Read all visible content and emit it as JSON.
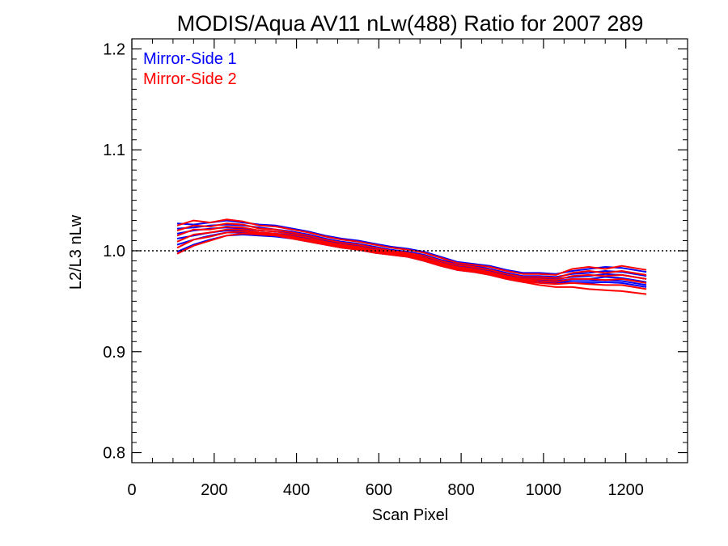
{
  "chart_data": {
    "type": "line",
    "title": "MODIS/Aqua AV11 nLw(488) Ratio for 2007 289",
    "xlabel": "Scan Pixel",
    "ylabel": "L2/L3 nLw",
    "xlim": [
      0,
      1350
    ],
    "ylim": [
      0.79,
      1.21
    ],
    "x_ticks": [
      0,
      200,
      400,
      600,
      800,
      1000,
      1200
    ],
    "x_tick_labels": [
      "0",
      "200",
      "400",
      "600",
      "800",
      "1000",
      "1200"
    ],
    "y_ticks": [
      0.8,
      0.9,
      1.0,
      1.1,
      1.2
    ],
    "y_tick_labels": [
      "0.8",
      "0.9",
      "1.0",
      "1.1",
      "1.2"
    ],
    "reference_line": {
      "y": 1.0,
      "style": "dotted"
    },
    "legend_position": "top-left",
    "legend": [
      {
        "label": "Mirror-Side 1",
        "color": "#0000ff"
      },
      {
        "label": "Mirror-Side 2",
        "color": "#ff0000"
      }
    ],
    "x": [
      110,
      150,
      190,
      230,
      270,
      310,
      350,
      390,
      430,
      470,
      510,
      550,
      590,
      630,
      670,
      710,
      750,
      790,
      830,
      870,
      910,
      950,
      990,
      1030,
      1070,
      1110,
      1150,
      1190,
      1250
    ],
    "series": [
      {
        "group": "Mirror-Side 1",
        "color": "#0000ff",
        "values": [
          1.027,
          1.026,
          1.028,
          1.03,
          1.028,
          1.026,
          1.025,
          1.022,
          1.019,
          1.015,
          1.012,
          1.01,
          1.007,
          1.004,
          1.002,
          0.999,
          0.994,
          0.989,
          0.987,
          0.985,
          0.981,
          0.978,
          0.978,
          0.977,
          0.98,
          0.982,
          0.984,
          0.983,
          0.979
        ]
      },
      {
        "group": "Mirror-Side 1",
        "color": "#0000ff",
        "values": [
          1.022,
          1.023,
          1.025,
          1.026,
          1.025,
          1.023,
          1.021,
          1.019,
          1.016,
          1.012,
          1.009,
          1.007,
          1.004,
          1.001,
          0.999,
          0.996,
          0.991,
          0.987,
          0.985,
          0.982,
          0.978,
          0.975,
          0.975,
          0.974,
          0.977,
          0.978,
          0.98,
          0.979,
          0.975
        ]
      },
      {
        "group": "Mirror-Side 1",
        "color": "#0000ff",
        "values": [
          1.017,
          1.02,
          1.022,
          1.023,
          1.022,
          1.02,
          1.019,
          1.017,
          1.014,
          1.01,
          1.007,
          1.005,
          1.002,
          1.0,
          0.998,
          0.994,
          0.989,
          0.985,
          0.983,
          0.98,
          0.976,
          0.973,
          0.973,
          0.972,
          0.974,
          0.975,
          0.977,
          0.976,
          0.972
        ]
      },
      {
        "group": "Mirror-Side 1",
        "color": "#0000ff",
        "values": [
          1.012,
          1.015,
          1.018,
          1.02,
          1.02,
          1.018,
          1.017,
          1.015,
          1.012,
          1.008,
          1.005,
          1.003,
          1.0,
          0.998,
          0.996,
          0.992,
          0.987,
          0.983,
          0.981,
          0.978,
          0.974,
          0.971,
          0.971,
          0.97,
          0.972,
          0.972,
          0.974,
          0.973,
          0.969
        ]
      },
      {
        "group": "Mirror-Side 1",
        "color": "#0000ff",
        "values": [
          1.006,
          1.011,
          1.015,
          1.018,
          1.018,
          1.016,
          1.015,
          1.013,
          1.01,
          1.007,
          1.004,
          1.002,
          0.999,
          0.997,
          0.995,
          0.991,
          0.986,
          0.982,
          0.98,
          0.977,
          0.973,
          0.97,
          0.97,
          0.969,
          0.97,
          0.97,
          0.971,
          0.97,
          0.966
        ]
      },
      {
        "group": "Mirror-Side 1",
        "color": "#0000ff",
        "values": [
          0.999,
          1.006,
          1.011,
          1.015,
          1.016,
          1.015,
          1.014,
          1.012,
          1.009,
          1.006,
          1.003,
          1.001,
          0.998,
          0.996,
          0.994,
          0.99,
          0.985,
          0.981,
          0.979,
          0.976,
          0.972,
          0.969,
          0.969,
          0.968,
          0.968,
          0.968,
          0.969,
          0.968,
          0.964
        ]
      },
      {
        "group": "Mirror-Side 2",
        "color": "#ff0000",
        "values": [
          1.025,
          1.03,
          1.028,
          1.031,
          1.029,
          1.025,
          1.024,
          1.021,
          1.018,
          1.014,
          1.011,
          1.009,
          1.006,
          1.003,
          1.001,
          0.998,
          0.993,
          0.988,
          0.986,
          0.984,
          0.98,
          0.977,
          0.977,
          0.976,
          0.982,
          0.984,
          0.982,
          0.985,
          0.981
        ]
      },
      {
        "group": "Mirror-Side 2",
        "color": "#ff0000",
        "values": [
          1.02,
          1.025,
          1.024,
          1.027,
          1.026,
          1.022,
          1.021,
          1.018,
          1.015,
          1.011,
          1.008,
          1.006,
          1.003,
          1.0,
          0.998,
          0.995,
          0.99,
          0.986,
          0.984,
          0.981,
          0.977,
          0.974,
          0.974,
          0.973,
          0.978,
          0.98,
          0.978,
          0.98,
          0.976
        ]
      },
      {
        "group": "Mirror-Side 2",
        "color": "#ff0000",
        "values": [
          1.015,
          1.021,
          1.021,
          1.024,
          1.023,
          1.02,
          1.019,
          1.016,
          1.013,
          1.009,
          1.006,
          1.004,
          1.001,
          0.999,
          0.997,
          0.993,
          0.988,
          0.984,
          0.982,
          0.979,
          0.975,
          0.972,
          0.972,
          0.971,
          0.975,
          0.976,
          0.975,
          0.976,
          0.972
        ]
      },
      {
        "group": "Mirror-Side 2",
        "color": "#ff0000",
        "values": [
          1.009,
          1.016,
          1.018,
          1.021,
          1.021,
          1.018,
          1.017,
          1.014,
          1.011,
          1.008,
          1.005,
          1.003,
          1.0,
          0.998,
          0.996,
          0.992,
          0.987,
          0.983,
          0.981,
          0.978,
          0.974,
          0.971,
          0.97,
          0.969,
          0.972,
          0.972,
          0.971,
          0.972,
          0.968
        ]
      },
      {
        "group": "Mirror-Side 2",
        "color": "#ff0000",
        "values": [
          1.003,
          1.011,
          1.014,
          1.018,
          1.019,
          1.017,
          1.016,
          1.013,
          1.01,
          1.007,
          1.004,
          1.002,
          0.999,
          0.997,
          0.995,
          0.991,
          0.986,
          0.982,
          0.98,
          0.977,
          0.973,
          0.97,
          0.968,
          0.967,
          0.968,
          0.967,
          0.966,
          0.966,
          0.962
        ]
      },
      {
        "group": "Mirror-Side 2",
        "color": "#ff0000",
        "values": [
          0.997,
          1.005,
          1.01,
          1.015,
          1.017,
          1.016,
          1.015,
          1.012,
          1.009,
          1.006,
          1.003,
          1.001,
          0.998,
          0.996,
          0.994,
          0.99,
          0.985,
          0.981,
          0.979,
          0.976,
          0.972,
          0.969,
          0.966,
          0.964,
          0.964,
          0.962,
          0.961,
          0.96,
          0.957
        ]
      }
    ]
  }
}
